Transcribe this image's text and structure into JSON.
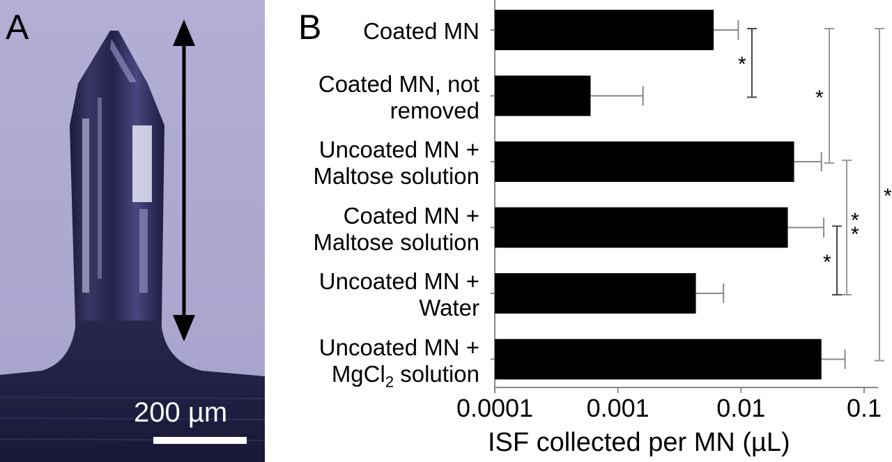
{
  "panel_a": {
    "label": "A",
    "scale_bar_text": "200 µm"
  },
  "chart_data": {
    "panel_label": "B",
    "type": "bar",
    "orientation": "horizontal",
    "xscale": "log",
    "xlim": [
      0.0001,
      0.1
    ],
    "xlabel": "ISF collected per MN (µL)",
    "xticks": [
      "0.0001",
      "0.001",
      "0.01",
      "0.1"
    ],
    "categories": [
      [
        "Coated MN"
      ],
      [
        "Coated MN, not",
        "removed"
      ],
      [
        "Uncoated MN +",
        "Maltose solution"
      ],
      [
        "Coated MN +",
        "Maltose solution"
      ],
      [
        "Uncoated MN +",
        "Water"
      ],
      [
        "Uncoated MN +",
        "MgCl2 solution"
      ]
    ],
    "values": [
      0.006,
      0.0006,
      0.027,
      0.024,
      0.0043,
      0.045
    ],
    "error_upper": [
      0.0095,
      0.0016,
      0.045,
      0.047,
      0.0072,
      0.07
    ],
    "significance": [
      {
        "rows": [
          0,
          1
        ],
        "label": "*"
      },
      {
        "rows": [
          0,
          2
        ],
        "label": "*"
      },
      {
        "rows": [
          3,
          4
        ],
        "label": "*"
      },
      {
        "rows": [
          2,
          4
        ],
        "label": "**"
      },
      {
        "rows": [
          0,
          5
        ],
        "label": "*"
      }
    ],
    "bar_color": "#000000",
    "grid": false
  }
}
